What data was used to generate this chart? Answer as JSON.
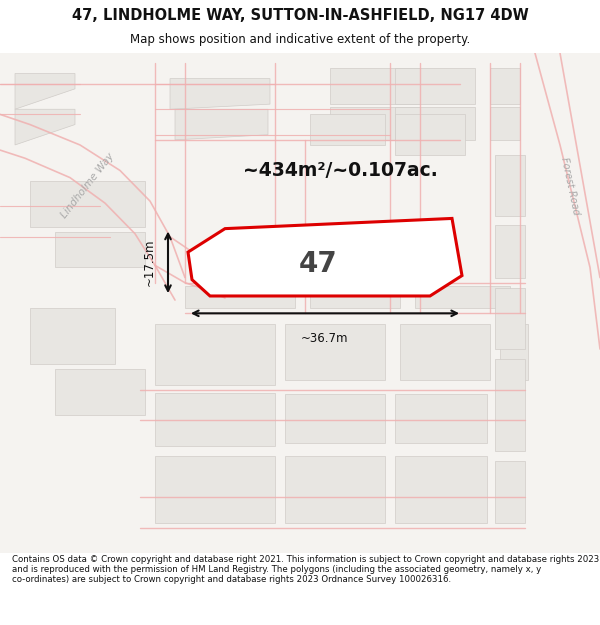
{
  "title": "47, LINDHOLME WAY, SUTTON-IN-ASHFIELD, NG17 4DW",
  "subtitle": "Map shows position and indicative extent of the property.",
  "footer": "Contains OS data © Crown copyright and database right 2021. This information is subject to Crown copyright and database rights 2023 and is reproduced with the permission of HM Land Registry. The polygons (including the associated geometry, namely x, y co-ordinates) are subject to Crown copyright and database rights 2023 Ordnance Survey 100026316.",
  "area_label": "~434m²/~0.107ac.",
  "width_label": "~36.7m",
  "height_label": "~17.5m",
  "number_label": "47",
  "map_bg": "#f5f3f0",
  "road_line_color": "#f0b0b0",
  "building_fill": "#e8e6e2",
  "building_edge": "#d0ccc8",
  "plot_fill": "#ffffff",
  "plot_outline": "#dd0000",
  "dim_color": "#111111",
  "title_color": "#111111",
  "footer_color": "#111111",
  "road_label_color": "#aaaaaa",
  "road_name_1": "Lindholme Way",
  "road_name_2": "Forest Road"
}
